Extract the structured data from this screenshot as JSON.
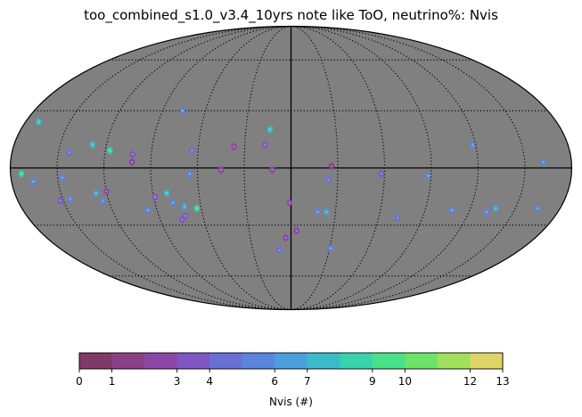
{
  "chart_data": {
    "type": "scatter",
    "projection": "mollweide",
    "title": "too_combined_s1.0_v3.4_10yrs note like ToO, neutrino%: Nvis",
    "background_color": "#808080",
    "graticule": {
      "meridian_step_deg": 30,
      "parallel_step_deg": 30,
      "style": "dotted"
    },
    "colorbar": {
      "label": "Nvis (#)",
      "ticks": [
        0,
        1,
        3,
        4,
        6,
        7,
        9,
        10,
        12,
        13
      ],
      "tick_labels": [
        "0",
        "1",
        "3",
        "4",
        "6",
        "7",
        "9",
        "10",
        "12",
        "13"
      ],
      "range": [
        0,
        13
      ],
      "segments": 13,
      "colormap": [
        "#7f3a67",
        "#8a3f87",
        "#8c47a6",
        "#7e57c2",
        "#6a6fd6",
        "#5a85df",
        "#4aa0da",
        "#3dbac9",
        "#38d2ab",
        "#48e18a",
        "#6ee36a",
        "#a0e05c",
        "#dfd46a"
      ]
    },
    "points": [
      {
        "lon": 171,
        "lat": 24,
        "nvis": 7
      },
      {
        "lon": 143,
        "lat": 8,
        "nvis": 4
      },
      {
        "lon": 129,
        "lat": 12,
        "nvis": 7
      },
      {
        "lon": 117,
        "lat": 9,
        "nvis": 8
      },
      {
        "lon": 76,
        "lat": 30,
        "nvis": 5
      },
      {
        "lon": 102,
        "lat": 7,
        "nvis": 3
      },
      {
        "lon": 102,
        "lat": 3,
        "nvis": 2
      },
      {
        "lon": 64,
        "lat": 9,
        "nvis": 4
      },
      {
        "lon": 37,
        "lat": 11,
        "nvis": 2
      },
      {
        "lon": 14,
        "lat": 20,
        "nvis": 7
      },
      {
        "lon": 17,
        "lat": 12,
        "nvis": 3
      },
      {
        "lon": -26,
        "lat": 1,
        "nvis": 1
      },
      {
        "lon": -118,
        "lat": 12,
        "nvis": 5
      },
      {
        "lon": -162,
        "lat": 3,
        "nvis": 5
      },
      {
        "lon": 45,
        "lat": -1,
        "nvis": 2
      },
      {
        "lon": 65,
        "lat": -3,
        "nvis": 5
      },
      {
        "lon": 12,
        "lat": -1,
        "nvis": 2
      },
      {
        "lon": -24,
        "lat": -6,
        "nvis": 4
      },
      {
        "lon": -58,
        "lat": -3,
        "nvis": 3
      },
      {
        "lon": -88,
        "lat": -4,
        "nvis": 5
      },
      {
        "lon": 173,
        "lat": -3,
        "nvis": 8
      },
      {
        "lon": 147,
        "lat": -5,
        "nvis": 5
      },
      {
        "lon": 166,
        "lat": -7,
        "nvis": 5
      },
      {
        "lon": 120,
        "lat": -12,
        "nvis": 2
      },
      {
        "lon": 127,
        "lat": -13,
        "nvis": 6
      },
      {
        "lon": 124,
        "lat": -17,
        "nvis": 5
      },
      {
        "lon": 152,
        "lat": -17,
        "nvis": 3
      },
      {
        "lon": 145,
        "lat": -16,
        "nvis": 5
      },
      {
        "lon": 1,
        "lat": -18,
        "nvis": 2
      },
      {
        "lon": 81,
        "lat": -13,
        "nvis": 7
      },
      {
        "lon": 89,
        "lat": -15,
        "nvis": 3
      },
      {
        "lon": 78,
        "lat": -18,
        "nvis": 5
      },
      {
        "lon": 71,
        "lat": -20,
        "nvis": 6
      },
      {
        "lon": 63,
        "lat": -21,
        "nvis": 8
      },
      {
        "lon": 96,
        "lat": -22,
        "nvis": 5
      },
      {
        "lon": -18,
        "lat": -23,
        "nvis": 5
      },
      {
        "lon": -24,
        "lat": -23,
        "nvis": 6
      },
      {
        "lon": -137,
        "lat": -21,
        "nvis": 6
      },
      {
        "lon": -108,
        "lat": -22,
        "nvis": 5
      },
      {
        "lon": -132,
        "lat": -23,
        "nvis": 5
      },
      {
        "lon": 72,
        "lat": -25,
        "nvis": 3
      },
      {
        "lon": 75,
        "lat": -27,
        "nvis": 3
      },
      {
        "lon": -73,
        "lat": -26,
        "nvis": 4
      },
      {
        "lon": -165,
        "lat": -21,
        "nvis": 5
      },
      {
        "lon": -4,
        "lat": -33,
        "nvis": 2
      },
      {
        "lon": 4,
        "lat": -37,
        "nvis": 2
      },
      {
        "lon": 9,
        "lat": -44,
        "nvis": 4
      },
      {
        "lon": -31,
        "lat": -43,
        "nvis": 5
      }
    ]
  }
}
